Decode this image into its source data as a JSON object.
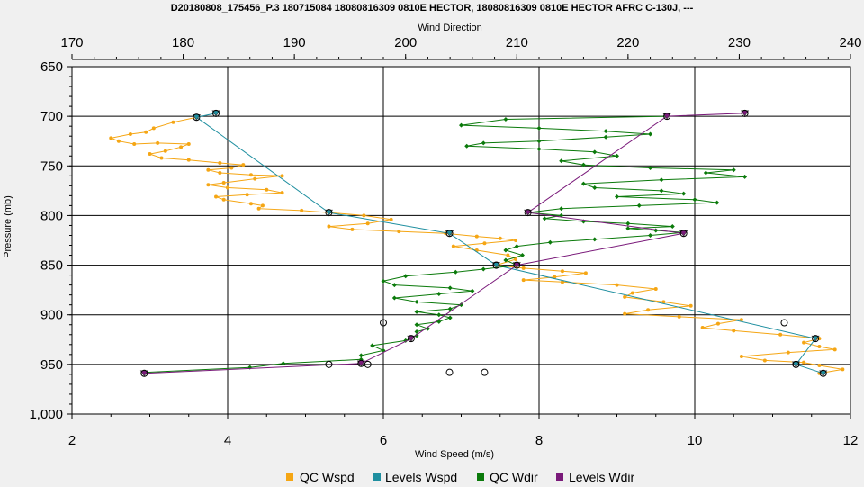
{
  "colors": {
    "qc_wspd": "#f5a614",
    "levels_wspd": "#1f8fa0",
    "qc_wdir": "#0b7a0b",
    "levels_wdir": "#7a1a7a",
    "background": "#f0f0f0",
    "plot_background": "#ffffff",
    "grid": "#000000"
  },
  "chart_data": {
    "type": "line",
    "title": "D20180808_175456_P.3 180715084 18080816309 0810E HECTOR, 18080816309 0810E HECTOR AFRC C-130J, ---",
    "xlabel": "Wind Speed (m/s)",
    "x2label": "Wind Direction",
    "ylabel": "Pressure (mb)",
    "xlim": [
      2,
      12
    ],
    "x2lim": [
      170,
      240
    ],
    "ylim": [
      1000,
      650
    ],
    "y_inverted": true,
    "grid": true,
    "legend_position": "bottom",
    "x_ticks": [
      "2",
      "4",
      "6",
      "8",
      "10",
      "12"
    ],
    "x2_ticks": [
      "170",
      "180",
      "190",
      "200",
      "210",
      "220",
      "230",
      "240"
    ],
    "y_ticks": [
      "650",
      "700",
      "750",
      "800",
      "850",
      "900",
      "950",
      "1,000"
    ],
    "series": [
      {
        "name": "QC Wspd",
        "axis": "bottom",
        "marker": "dot",
        "points": [
          [
            3.6,
            701
          ],
          [
            3.3,
            706
          ],
          [
            3.05,
            712
          ],
          [
            2.95,
            716
          ],
          [
            2.75,
            718
          ],
          [
            2.5,
            722
          ],
          [
            2.6,
            725
          ],
          [
            2.8,
            728
          ],
          [
            3.1,
            727
          ],
          [
            3.5,
            728
          ],
          [
            3.4,
            731
          ],
          [
            3.2,
            735
          ],
          [
            3.0,
            738
          ],
          [
            3.15,
            742
          ],
          [
            3.5,
            744
          ],
          [
            3.9,
            747
          ],
          [
            4.2,
            749
          ],
          [
            4.05,
            752
          ],
          [
            3.75,
            754
          ],
          [
            3.9,
            757
          ],
          [
            4.3,
            759
          ],
          [
            4.7,
            760
          ],
          [
            4.35,
            763
          ],
          [
            3.95,
            767
          ],
          [
            3.75,
            769
          ],
          [
            4.0,
            772
          ],
          [
            4.5,
            774
          ],
          [
            4.7,
            777
          ],
          [
            4.25,
            779
          ],
          [
            3.85,
            781
          ],
          [
            3.95,
            784
          ],
          [
            4.3,
            788
          ],
          [
            4.45,
            790
          ],
          [
            4.4,
            793
          ],
          [
            4.95,
            795
          ],
          [
            5.3,
            797
          ],
          [
            5.75,
            800
          ],
          [
            6.1,
            804
          ],
          [
            5.8,
            808
          ],
          [
            5.3,
            811
          ],
          [
            5.6,
            814
          ],
          [
            6.2,
            816
          ],
          [
            6.8,
            818
          ],
          [
            7.2,
            821
          ],
          [
            7.5,
            823
          ],
          [
            7.7,
            825
          ],
          [
            7.3,
            828
          ],
          [
            6.9,
            831
          ],
          [
            7.2,
            835
          ],
          [
            7.6,
            840
          ],
          [
            7.7,
            844
          ],
          [
            7.45,
            850
          ],
          [
            7.8,
            853
          ],
          [
            8.3,
            856
          ],
          [
            8.6,
            858
          ],
          [
            8.2,
            862
          ],
          [
            7.8,
            865
          ],
          [
            8.3,
            867
          ],
          [
            9.0,
            870
          ],
          [
            9.5,
            874
          ],
          [
            9.2,
            878
          ],
          [
            9.1,
            882
          ],
          [
            9.6,
            887
          ],
          [
            9.95,
            891
          ],
          [
            9.4,
            895
          ],
          [
            9.1,
            899
          ],
          [
            9.8,
            902
          ],
          [
            10.6,
            905
          ],
          [
            10.3,
            909
          ],
          [
            10.1,
            913
          ],
          [
            10.5,
            916
          ],
          [
            11.1,
            920
          ],
          [
            11.6,
            924
          ],
          [
            11.4,
            928
          ],
          [
            11.6,
            932
          ],
          [
            11.8,
            935
          ],
          [
            11.2,
            938
          ],
          [
            10.6,
            942
          ],
          [
            10.9,
            946
          ],
          [
            11.4,
            948
          ],
          [
            11.6,
            951
          ],
          [
            11.9,
            955
          ],
          [
            11.6,
            959
          ]
        ]
      },
      {
        "name": "Levels Wspd",
        "axis": "bottom",
        "marker": "triangle",
        "points": [
          [
            3.85,
            697
          ],
          [
            3.6,
            701
          ],
          [
            5.3,
            797
          ],
          [
            6.85,
            818
          ],
          [
            7.45,
            850
          ],
          [
            11.55,
            924
          ],
          [
            11.3,
            950
          ],
          [
            11.65,
            959
          ]
        ]
      },
      {
        "name": "QC Wdir",
        "axis": "top",
        "marker": "diamond",
        "points": [
          [
            223.5,
            700
          ],
          [
            209,
            703
          ],
          [
            205,
            709
          ],
          [
            212,
            712
          ],
          [
            218,
            715
          ],
          [
            222,
            718
          ],
          [
            218,
            721
          ],
          [
            212,
            725
          ],
          [
            207,
            727
          ],
          [
            205.5,
            730
          ],
          [
            212,
            733
          ],
          [
            217,
            736
          ],
          [
            219,
            740
          ],
          [
            214,
            745
          ],
          [
            216,
            749
          ],
          [
            222,
            752
          ],
          [
            229.5,
            754
          ],
          [
            227,
            757
          ],
          [
            230.5,
            761
          ],
          [
            223,
            764
          ],
          [
            216,
            768
          ],
          [
            217,
            772
          ],
          [
            223,
            775
          ],
          [
            225,
            778
          ],
          [
            219,
            781
          ],
          [
            226,
            784
          ],
          [
            228,
            787
          ],
          [
            221,
            790
          ],
          [
            214,
            793
          ],
          [
            211,
            797
          ],
          [
            214,
            800
          ],
          [
            212.5,
            803
          ],
          [
            216,
            806
          ],
          [
            220,
            808
          ],
          [
            224,
            811
          ],
          [
            220,
            813
          ],
          [
            222.5,
            815
          ],
          [
            225,
            817
          ],
          [
            222,
            820
          ],
          [
            217,
            824
          ],
          [
            213,
            827
          ],
          [
            210,
            831
          ],
          [
            209,
            835
          ],
          [
            210.5,
            840
          ],
          [
            209,
            845
          ],
          [
            210,
            850
          ],
          [
            207,
            854
          ],
          [
            204.5,
            857
          ],
          [
            200,
            861
          ],
          [
            198,
            866
          ],
          [
            199,
            870
          ],
          [
            204,
            873
          ],
          [
            206,
            876
          ],
          [
            203,
            879
          ],
          [
            199,
            883
          ],
          [
            201,
            887
          ],
          [
            205,
            890
          ],
          [
            204,
            894
          ],
          [
            201,
            897
          ],
          [
            203,
            900
          ],
          [
            204,
            903
          ],
          [
            203,
            907
          ],
          [
            201,
            910
          ],
          [
            202,
            914
          ],
          [
            201,
            917
          ],
          [
            201,
            921
          ],
          [
            200,
            926
          ],
          [
            197,
            931
          ],
          [
            198,
            936
          ],
          [
            196,
            941
          ],
          [
            196,
            945
          ],
          [
            189,
            949
          ],
          [
            186,
            953
          ],
          [
            176.5,
            958
          ]
        ]
      },
      {
        "name": "Levels Wdir",
        "axis": "top",
        "marker": "triangle",
        "points": [
          [
            230.5,
            697
          ],
          [
            223.5,
            700
          ],
          [
            211,
            797
          ],
          [
            225,
            818
          ],
          [
            210,
            850
          ],
          [
            200.5,
            924
          ],
          [
            196,
            949
          ],
          [
            176.5,
            959
          ]
        ]
      }
    ],
    "extra_markers": [
      {
        "axis": "bottom",
        "x": 6.0,
        "y": 908
      },
      {
        "axis": "bottom",
        "x": 11.15,
        "y": 908
      },
      {
        "axis": "bottom",
        "x": 6.85,
        "y": 958
      },
      {
        "axis": "bottom",
        "x": 7.3,
        "y": 958
      },
      {
        "axis": "bottom",
        "x": 5.3,
        "y": 950
      },
      {
        "axis": "bottom",
        "x": 5.8,
        "y": 950
      },
      {
        "axis": "bottom",
        "x": 7.45,
        "y": 850
      },
      {
        "axis": "bottom",
        "x": 11.3,
        "y": 950
      }
    ]
  }
}
